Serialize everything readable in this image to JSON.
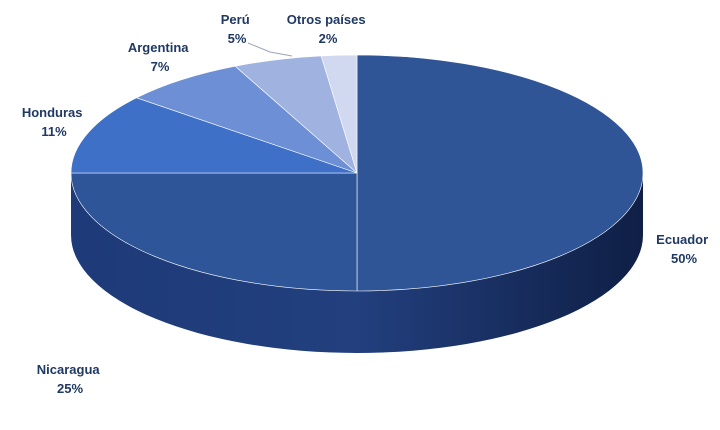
{
  "chart_data": {
    "type": "pie",
    "style": "3d",
    "categories": [
      "Ecuador",
      "Nicaragua",
      "Honduras",
      "Argentina",
      "Perú",
      "Otros países"
    ],
    "values": [
      50,
      25,
      11,
      7,
      5,
      2
    ],
    "value_labels": [
      "50%",
      "25%",
      "11%",
      "7%",
      "5%",
      "2%"
    ],
    "unit": "%",
    "colors": [
      "#2f5597",
      "#2e5597",
      "#3e70c8",
      "#6c8fd6",
      "#a0b3e0",
      "#d0d9ef"
    ],
    "title": "",
    "legend": "none"
  }
}
